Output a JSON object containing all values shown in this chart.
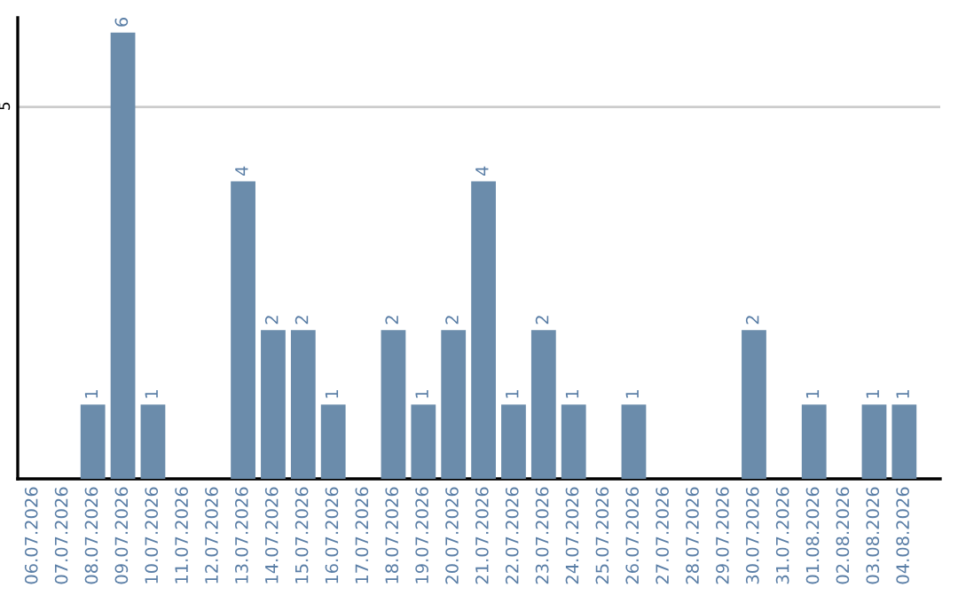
{
  "chart_data": {
    "type": "bar",
    "categories": [
      "06.07.2026",
      "07.07.2026",
      "08.07.2026",
      "09.07.2026",
      "10.07.2026",
      "11.07.2026",
      "12.07.2026",
      "13.07.2026",
      "14.07.2026",
      "15.07.2026",
      "16.07.2026",
      "17.07.2026",
      "18.07.2026",
      "19.07.2026",
      "20.07.2026",
      "21.07.2026",
      "22.07.2026",
      "23.07.2026",
      "24.07.2026",
      "25.07.2026",
      "26.07.2026",
      "27.07.2026",
      "28.07.2026",
      "29.07.2026",
      "30.07.2026",
      "31.07.2026",
      "01.08.2026",
      "02.08.2026",
      "03.08.2026",
      "04.08.2026"
    ],
    "values": [
      0,
      0,
      1,
      6,
      1,
      0,
      0,
      4,
      2,
      2,
      1,
      0,
      2,
      1,
      2,
      4,
      1,
      2,
      1,
      0,
      1,
      0,
      0,
      0,
      2,
      0,
      1,
      0,
      1,
      1
    ],
    "value_labels": [
      null,
      null,
      "1",
      "6",
      "1",
      null,
      null,
      "4",
      "2",
      "2",
      "1",
      null,
      "2",
      "1",
      "2",
      "4",
      "1",
      "2",
      "1",
      null,
      "1",
      null,
      null,
      null,
      "2",
      null,
      "1",
      null,
      "1",
      "1"
    ],
    "color": "#6b8cab",
    "ylim": [
      0,
      6.2
    ],
    "yticks": [
      5
    ],
    "grid": "y",
    "legend": false
  }
}
